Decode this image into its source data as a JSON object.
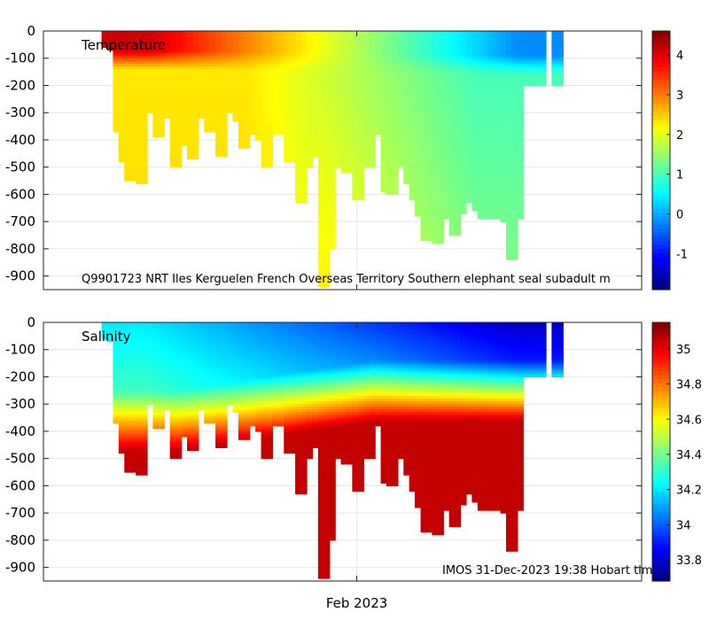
{
  "chart_data": [
    {
      "type": "heatmap",
      "title": "Temperature",
      "variable": "temperature",
      "annotation": "Q9901723 NRT Iles Kerguelen French Overseas Territory Southern elephant seal subadult m",
      "ylabel": "",
      "yticks": [
        0,
        -100,
        -200,
        -300,
        -400,
        -500,
        -600,
        -700,
        -800,
        -900
      ],
      "ylim": [
        -950,
        0
      ],
      "x_tick_labels": [
        "Feb 2023"
      ],
      "colorbar": {
        "range": [
          -1.9,
          4.6
        ],
        "ticks": [
          4,
          3,
          2,
          1,
          0,
          -1
        ],
        "colormap": "jet"
      },
      "profiles": [
        {
          "day": 0.0,
          "max_depth": 60
        },
        {
          "day": 0.4,
          "max_depth": 70
        },
        {
          "day": 0.8,
          "max_depth": 370
        },
        {
          "day": 1.2,
          "max_depth": 475
        },
        {
          "day": 1.6,
          "max_depth": 550
        },
        {
          "day": 2.0,
          "max_depth": 380
        },
        {
          "day": 2.4,
          "max_depth": 555
        },
        {
          "day": 2.8,
          "max_depth": 300
        },
        {
          "day": 3.2,
          "max_depth": 220
        },
        {
          "day": 3.6,
          "max_depth": 390
        },
        {
          "day": 4.0,
          "max_depth": 320
        },
        {
          "day": 4.4,
          "max_depth": 300
        },
        {
          "day": 4.8,
          "max_depth": 500
        },
        {
          "day": 5.2,
          "max_depth": 240
        },
        {
          "day": 5.6,
          "max_depth": 420
        },
        {
          "day": 6.0,
          "max_depth": 470
        },
        {
          "day": 6.4,
          "max_depth": 280
        },
        {
          "day": 6.8,
          "max_depth": 320
        },
        {
          "day": 7.2,
          "max_depth": 370
        },
        {
          "day": 7.6,
          "max_depth": 280
        },
        {
          "day": 8.0,
          "max_depth": 460
        },
        {
          "day": 8.4,
          "max_depth": 300
        },
        {
          "day": 8.8,
          "max_depth": 250
        },
        {
          "day": 9.2,
          "max_depth": 330
        },
        {
          "day": 9.6,
          "max_depth": 430
        },
        {
          "day": 10.0,
          "max_depth": 380
        },
        {
          "day": 10.4,
          "max_depth": 330
        },
        {
          "day": 10.8,
          "max_depth": 400
        },
        {
          "day": 11.2,
          "max_depth": 500
        },
        {
          "day": 11.6,
          "max_depth": 330
        },
        {
          "day": 12.0,
          "max_depth": 380
        },
        {
          "day": 12.4,
          "max_depth": 310
        },
        {
          "day": 12.8,
          "max_depth": 480
        },
        {
          "day": 13.2,
          "max_depth": 460
        },
        {
          "day": 13.6,
          "max_depth": 630
        },
        {
          "day": 14.0,
          "max_depth": 500
        },
        {
          "day": 14.4,
          "max_depth": 460
        },
        {
          "day": 14.8,
          "max_depth": 390
        },
        {
          "day": 15.2,
          "max_depth": 940
        },
        {
          "day": 15.6,
          "max_depth": 800
        },
        {
          "day": 16.0,
          "max_depth": 420
        },
        {
          "day": 16.4,
          "max_depth": 500
        },
        {
          "day": 16.8,
          "max_depth": 520
        },
        {
          "day": 17.2,
          "max_depth": 380
        },
        {
          "day": 17.6,
          "max_depth": 620
        },
        {
          "day": 18.0,
          "max_depth": 470
        },
        {
          "day": 18.4,
          "max_depth": 500
        },
        {
          "day": 18.8,
          "max_depth": 380
        },
        {
          "day": 19.2,
          "max_depth": 330
        },
        {
          "day": 19.6,
          "max_depth": 590
        },
        {
          "day": 20.0,
          "max_depth": 600
        },
        {
          "day": 20.4,
          "max_depth": 500
        },
        {
          "day": 20.8,
          "max_depth": 480
        },
        {
          "day": 21.2,
          "max_depth": 560
        },
        {
          "day": 21.6,
          "max_depth": 620
        },
        {
          "day": 22.0,
          "max_depth": 680
        },
        {
          "day": 22.4,
          "max_depth": 770
        },
        {
          "day": 22.8,
          "max_depth": 700
        },
        {
          "day": 23.2,
          "max_depth": 780
        },
        {
          "day": 23.6,
          "max_depth": 690
        },
        {
          "day": 24.0,
          "max_depth": 600
        },
        {
          "day": 24.4,
          "max_depth": 750
        },
        {
          "day": 24.8,
          "max_depth": 670
        },
        {
          "day": 25.2,
          "max_depth": 630
        },
        {
          "day": 25.6,
          "max_depth": 560
        },
        {
          "day": 26.0,
          "max_depth": 660
        },
        {
          "day": 26.4,
          "max_depth": 690
        },
        {
          "day": 26.8,
          "max_depth": 520
        },
        {
          "day": 27.2,
          "max_depth": 690
        },
        {
          "day": 27.6,
          "max_depth": 610
        },
        {
          "day": 28.0,
          "max_depth": 700
        },
        {
          "day": 28.4,
          "max_depth": 840
        },
        {
          "day": 28.8,
          "max_depth": 690
        },
        {
          "day": 29.2,
          "max_depth": 200
        },
        {
          "day": 29.6,
          "max_depth": 200
        },
        {
          "day": 30.0,
          "max_depth": 200
        },
        {
          "day": 30.4,
          "max_depth": 200
        },
        {
          "day": 31.6,
          "max_depth": 200
        }
      ]
    },
    {
      "type": "heatmap",
      "title": "Salinity",
      "variable": "salinity",
      "annotation": "IMOS 31-Dec-2023 19:38 Hobart tim",
      "ylabel": "",
      "yticks": [
        0,
        -100,
        -200,
        -300,
        -400,
        -500,
        -600,
        -700,
        -800,
        -900
      ],
      "ylim": [
        -950,
        0
      ],
      "x_tick_labels": [
        "Feb 2023"
      ],
      "colorbar": {
        "range": [
          33.68,
          35.15
        ],
        "ticks": [
          35,
          34.8,
          34.6,
          34.4,
          34.2,
          34,
          33.8
        ],
        "colormap": "jet"
      }
    }
  ],
  "x_axis": {
    "label": "Feb 2023",
    "day_range": [
      -4.5,
      37.5
    ],
    "tick_day": 17.5
  }
}
